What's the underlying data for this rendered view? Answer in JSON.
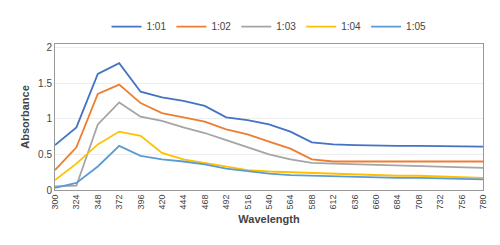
{
  "chart_data": {
    "type": "line",
    "x": [
      300,
      324,
      348,
      372,
      396,
      420,
      444,
      468,
      492,
      516,
      540,
      564,
      588,
      612,
      636,
      660,
      684,
      708,
      732,
      756,
      780
    ],
    "series": [
      {
        "name": "1:01",
        "color": "#4472c4",
        "values": [
          0.63,
          0.88,
          1.63,
          1.78,
          1.38,
          1.3,
          1.25,
          1.18,
          1.02,
          0.98,
          0.92,
          0.82,
          0.67,
          0.64,
          0.63,
          0.62,
          0.62,
          0.62,
          0.62,
          0.62,
          0.61
        ]
      },
      {
        "name": "1:02",
        "color": "#ed7d31",
        "values": [
          0.28,
          0.6,
          1.35,
          1.48,
          1.22,
          1.08,
          1.02,
          0.96,
          0.85,
          0.78,
          0.68,
          0.58,
          0.43,
          0.4,
          0.4,
          0.4,
          0.4,
          0.4,
          0.4,
          0.4,
          0.4
        ]
      },
      {
        "name": "1:03",
        "color": "#a5a5a5",
        "values": [
          0.05,
          0.06,
          0.92,
          1.23,
          1.03,
          0.97,
          0.88,
          0.8,
          0.7,
          0.6,
          0.5,
          0.43,
          0.38,
          0.37,
          0.36,
          0.35,
          0.34,
          0.33,
          0.33,
          0.32,
          0.31
        ]
      },
      {
        "name": "1:04",
        "color": "#ffc000",
        "values": [
          0.14,
          0.37,
          0.64,
          0.82,
          0.76,
          0.52,
          0.43,
          0.38,
          0.33,
          0.28,
          0.26,
          0.25,
          0.24,
          0.23,
          0.22,
          0.21,
          0.2,
          0.2,
          0.19,
          0.18,
          0.17
        ]
      },
      {
        "name": "1:05",
        "color": "#5b9bd5",
        "values": [
          0.03,
          0.1,
          0.33,
          0.62,
          0.48,
          0.43,
          0.4,
          0.36,
          0.3,
          0.26,
          0.23,
          0.21,
          0.2,
          0.19,
          0.19,
          0.18,
          0.17,
          0.17,
          0.16,
          0.16,
          0.15
        ]
      }
    ],
    "xlabel": "Wavelength",
    "ylabel": "Absorbance",
    "xlim": [
      300,
      780
    ],
    "xticks": [
      300,
      324,
      348,
      372,
      396,
      420,
      444,
      468,
      492,
      516,
      540,
      564,
      588,
      612,
      636,
      660,
      684,
      708,
      732,
      756,
      780
    ],
    "ylim": [
      0,
      2.05
    ],
    "yticks": [
      0,
      0.5,
      1,
      1.5,
      2
    ],
    "grid": true,
    "legend": "top"
  }
}
